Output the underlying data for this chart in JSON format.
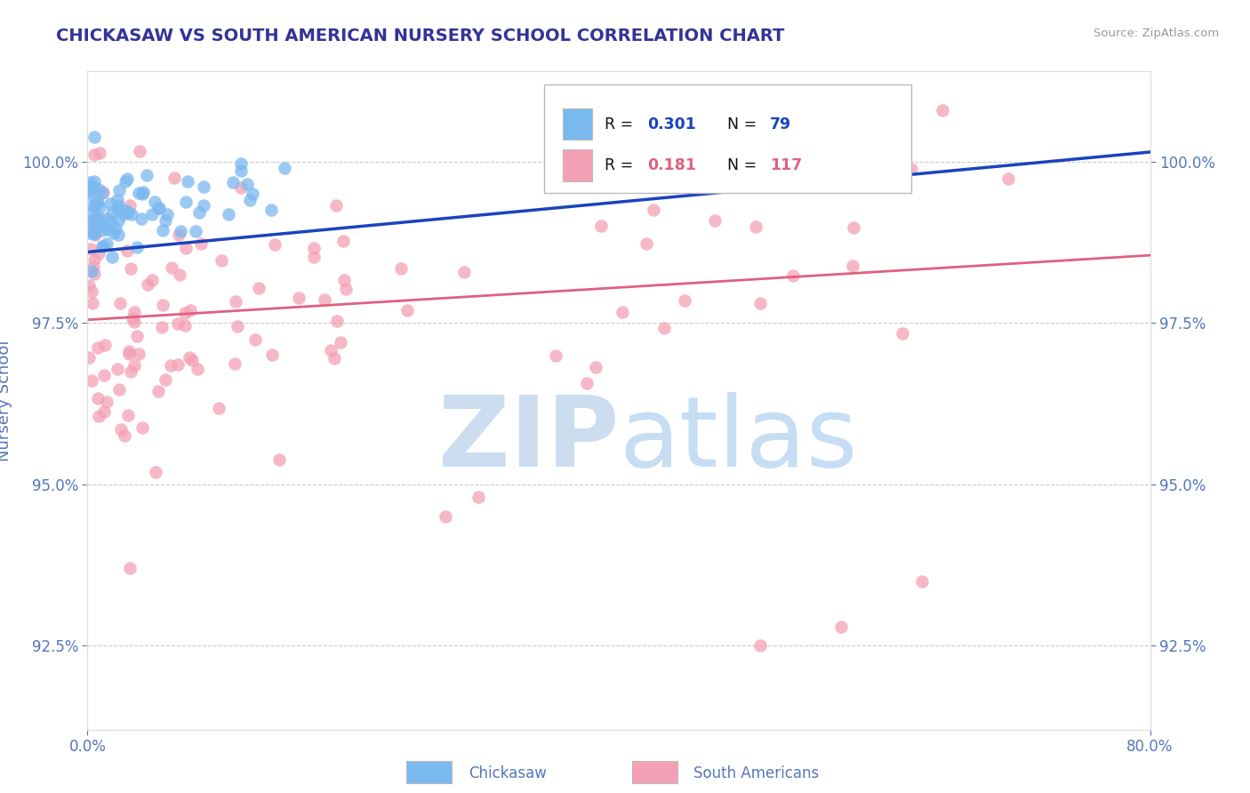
{
  "title": "CHICKASAW VS SOUTH AMERICAN NURSERY SCHOOL CORRELATION CHART",
  "source": "Source: ZipAtlas.com",
  "ylabel": "Nursery School",
  "xlim": [
    0.0,
    80.0
  ],
  "ylim": [
    91.2,
    101.4
  ],
  "yticks": [
    92.5,
    95.0,
    97.5,
    100.0
  ],
  "ytick_labels": [
    "92.5%",
    "95.0%",
    "97.5%",
    "100.0%"
  ],
  "xtick_labels": [
    "0.0%",
    "80.0%"
  ],
  "blue_R": 0.301,
  "blue_N": 79,
  "pink_R": 0.181,
  "pink_N": 117,
  "blue_color": "#7ab8f0",
  "pink_color": "#f4a0b5",
  "blue_line_color": "#1a44bb",
  "pink_line_color": "#e06080",
  "background_color": "#ffffff",
  "watermark_zip_color": "#ccddf0",
  "watermark_atlas_color": "#aaccee",
  "title_color": "#333399",
  "axis_label_color": "#5577bb",
  "tick_color": "#5577bb",
  "grid_color": "#cccccc",
  "source_color": "#999999",
  "blue_line_y0": 98.6,
  "blue_line_y80": 100.15,
  "pink_line_y0": 97.55,
  "pink_line_y80": 98.55
}
